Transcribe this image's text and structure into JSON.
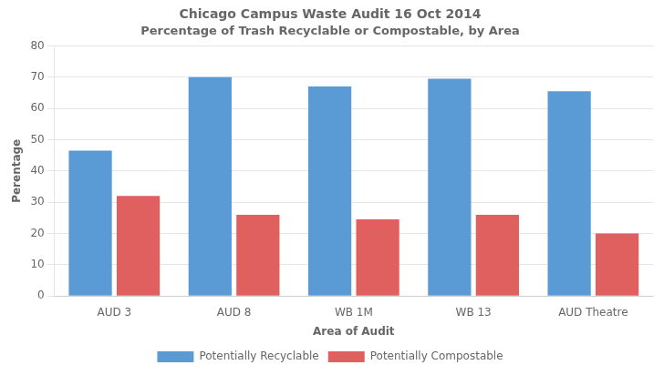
{
  "chart_data": {
    "type": "bar",
    "title": "Chicago Campus Waste Audit 16 Oct 2014",
    "subtitle": "Percentage of Trash Recyclable or Compostable, by Area",
    "x_label": "Area of Audit",
    "y_label": "Perentage",
    "categories": [
      "AUD 3",
      "AUD 8",
      "WB 1M",
      "WB 13",
      "AUD Theatre"
    ],
    "series": [
      {
        "name": "Potentially Recyclable",
        "color": "#5B9BD5",
        "values": [
          46.5,
          70.0,
          67.0,
          69.5,
          65.5
        ]
      },
      {
        "name": "Potentially Compostable",
        "color": "#E06060",
        "values": [
          32.0,
          26.0,
          24.5,
          26.0,
          20.0
        ]
      }
    ],
    "ylim": [
      0,
      80
    ],
    "yticks": [
      0,
      10,
      20,
      30,
      40,
      50,
      60,
      70,
      80
    ],
    "grid": true,
    "legend": "bottom"
  }
}
